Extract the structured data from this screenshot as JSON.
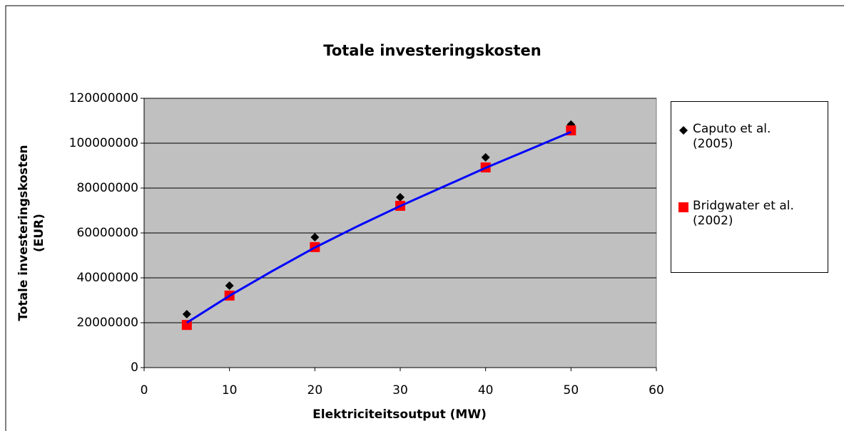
{
  "chart_data": {
    "type": "scatter",
    "title": "Totale investeringskosten",
    "xlabel": "Elektriciteitsoutput (MW)",
    "ylabel_lines": [
      "Totale investeringskosten",
      "(EUR)"
    ],
    "xlim": [
      0,
      60
    ],
    "xticks": [
      0,
      10,
      20,
      30,
      40,
      50,
      60
    ],
    "ylim": [
      0,
      120000000
    ],
    "yticks": [
      0,
      20000000,
      40000000,
      60000000,
      80000000,
      100000000,
      120000000
    ],
    "grid": true,
    "plot_background": "#c0c0c0",
    "legend": "right",
    "series": [
      {
        "name": "Caputo et al. (2005)",
        "color": "#000000",
        "marker": "diamond",
        "x": [
          5,
          10,
          20,
          30,
          40,
          50
        ],
        "values": [
          23800000,
          36500000,
          58100000,
          75900000,
          93700000,
          108300000
        ]
      },
      {
        "name": "Bridgwater et al. (2002)",
        "color": "#ff0000",
        "marker": "square",
        "x": [
          5,
          10,
          20,
          30,
          40,
          50
        ],
        "values": [
          19000000,
          32100000,
          53700000,
          72100000,
          89200000,
          105700000
        ]
      }
    ],
    "trendline": {
      "color": "#0000ff",
      "x": [
        5,
        10,
        15,
        20,
        25,
        30,
        35,
        40,
        45,
        50
      ],
      "values": [
        20000000,
        32000000,
        43000000,
        53500000,
        63000000,
        72000000,
        80500000,
        89000000,
        97000000,
        105000000
      ]
    }
  }
}
